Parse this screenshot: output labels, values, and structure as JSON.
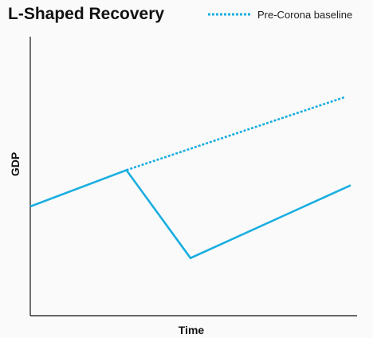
{
  "chart_data": {
    "type": "line",
    "title": "L-Shaped Recovery",
    "xlabel": "Time",
    "ylabel": "GDP",
    "legend_position": "top-right",
    "grid": false,
    "colors": {
      "series": "#1aaee0",
      "axis": "#111111"
    },
    "series": [
      {
        "name": "",
        "style": "solid",
        "points": [
          [
            0,
            2.8
          ],
          [
            3,
            4.0
          ],
          [
            5,
            1.1
          ],
          [
            10,
            3.5
          ]
        ]
      },
      {
        "name": "Pre-Corona baseline",
        "style": "dotted",
        "points": [
          [
            3,
            4.0
          ],
          [
            9.8,
            6.4
          ]
        ]
      }
    ],
    "xlim": [
      0,
      10.2
    ],
    "ylim": [
      -0.8,
      8.4
    ]
  }
}
